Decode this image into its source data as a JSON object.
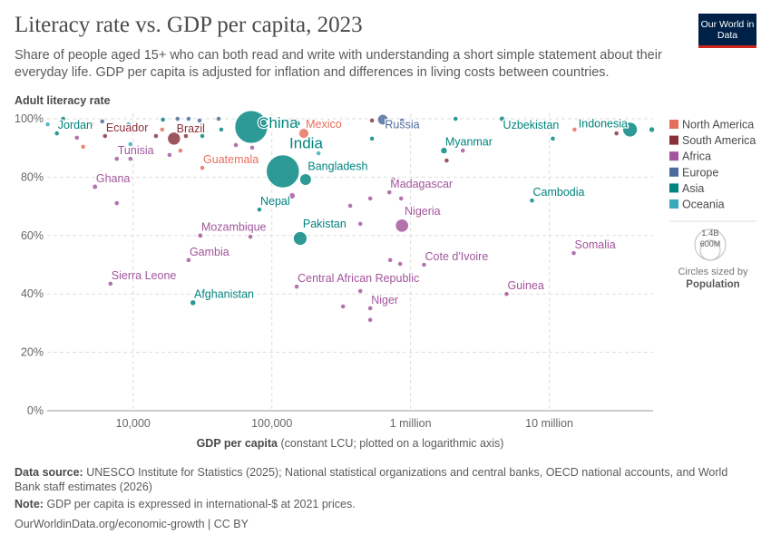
{
  "header": {
    "title": "Literacy rate vs. GDP per capita, 2023",
    "subtitle": "Share of people aged 15+ who can both read and write with understanding a short simple statement about their everyday life. GDP per capita is adjusted for inflation and differences in living costs between countries.",
    "logo": "Our World in Data"
  },
  "footer": {
    "source_label": "Data source:",
    "source": "UNESCO Institute for Statistics (2025); National statistical organizations and central banks, OECD national accounts, and World Bank staff estimates (2026)",
    "note_label": "Note:",
    "note": "GDP per capita is expressed in international-$ at 2021 prices.",
    "url": "OurWorldinData.org/economic-growth | CC BY"
  },
  "chart_data": {
    "type": "scatter",
    "title": "Literacy rate vs. GDP per capita, 2023",
    "ylabel": "Adult literacy rate",
    "xlabel_bold": "GDP per capita",
    "xlabel_rest": "(constant LCU; plotted on a logarithmic axis)",
    "x_scale": "log",
    "xlim": [
      2400,
      56000000
    ],
    "ylim": [
      0,
      100
    ],
    "x_ticks": [
      {
        "value": 10000,
        "label": "10,000"
      },
      {
        "value": 100000,
        "label": "100,000"
      },
      {
        "value": 1000000,
        "label": "1 million"
      },
      {
        "value": 10000000,
        "label": "10 million"
      }
    ],
    "y_ticks": [
      {
        "value": 0,
        "label": "0%"
      },
      {
        "value": 20,
        "label": "20%"
      },
      {
        "value": 40,
        "label": "40%"
      },
      {
        "value": 60,
        "label": "60%"
      },
      {
        "value": 80,
        "label": "80%"
      },
      {
        "value": 100,
        "label": "100%"
      }
    ],
    "grid": true,
    "legend_position": "right",
    "legend": [
      {
        "name": "North America",
        "color": "#E56E5A"
      },
      {
        "name": "South America",
        "color": "#883039"
      },
      {
        "name": "Africa",
        "color": "#A2559C"
      },
      {
        "name": "Europe",
        "color": "#4C6A9C"
      },
      {
        "name": "Asia",
        "color": "#00847E"
      },
      {
        "name": "Oceania",
        "color": "#38AABA"
      }
    ],
    "size_legend": {
      "large": "1.4B",
      "small": "600M",
      "caption": "Circles sized by",
      "variable": "Population"
    },
    "points": [
      {
        "label": "Jordan",
        "x": 2820,
        "y": 95.0,
        "region": "Asia",
        "pop": 11
      },
      {
        "label": "Ecuador",
        "x": 6270,
        "y": 94.1,
        "region": "South America",
        "pop": 18
      },
      {
        "label": "Brazil",
        "x": 19700,
        "y": 93.2,
        "region": "South America",
        "pop": 216
      },
      {
        "label": "China",
        "x": 71000,
        "y": 97.2,
        "region": "Asia",
        "pop": 1410
      },
      {
        "label": "Mexico",
        "x": 170000,
        "y": 95.0,
        "region": "North America",
        "pop": 128
      },
      {
        "label": "India",
        "x": 120000,
        "y": 82.0,
        "region": "Asia",
        "pop": 1430
      },
      {
        "label": "Bangladesh",
        "x": 175000,
        "y": 79.2,
        "region": "Asia",
        "pop": 173
      },
      {
        "label": "Tunisia",
        "x": 7620,
        "y": 86.3,
        "region": "Africa",
        "pop": 12
      },
      {
        "label": "Guatemala",
        "x": 31500,
        "y": 83.2,
        "region": "North America",
        "pop": 18
      },
      {
        "label": "Ghana",
        "x": 5310,
        "y": 76.7,
        "region": "Africa",
        "pop": 34
      },
      {
        "label": "Nepal",
        "x": 81300,
        "y": 68.9,
        "region": "Asia",
        "pop": 30
      },
      {
        "label": "Mozambique",
        "x": 30500,
        "y": 60.0,
        "region": "Africa",
        "pop": 33
      },
      {
        "label": "Pakistan",
        "x": 160000,
        "y": 59.0,
        "region": "Asia",
        "pop": 240
      },
      {
        "label": "Gambia",
        "x": 25100,
        "y": 51.6,
        "region": "Africa",
        "pop": 3
      },
      {
        "label": "Sierra Leone",
        "x": 6860,
        "y": 43.5,
        "region": "Africa",
        "pop": 9
      },
      {
        "label": "Afghanistan",
        "x": 27000,
        "y": 37.0,
        "region": "Asia",
        "pop": 42
      },
      {
        "label": "Central African Republic",
        "x": 151000,
        "y": 42.5,
        "region": "Africa",
        "pop": 5
      },
      {
        "label": "Niger",
        "x": 512000,
        "y": 35.1,
        "region": "Africa",
        "pop": 27
      },
      {
        "label": "Russia",
        "x": 631000,
        "y": 99.7,
        "region": "Europe",
        "pop": 144
      },
      {
        "label": "Madagascar",
        "x": 703000,
        "y": 74.8,
        "region": "Africa",
        "pop": 30
      },
      {
        "label": "Nigeria",
        "x": 867000,
        "y": 63.4,
        "region": "Africa",
        "pop": 224
      },
      {
        "label": "Myanmar",
        "x": 1740000,
        "y": 89.1,
        "region": "Asia",
        "pop": 54
      },
      {
        "label": "Uzbekistan",
        "x": 4560000,
        "y": 100,
        "region": "Asia",
        "pop": 35
      },
      {
        "label": "Indonesia",
        "x": 38200000,
        "y": 96.3,
        "region": "Asia",
        "pop": 278
      },
      {
        "label": "Cambodia",
        "x": 7500000,
        "y": 72.0,
        "region": "Asia",
        "pop": 17
      },
      {
        "label": "Somalia",
        "x": 15000000,
        "y": 54.0,
        "region": "Africa",
        "pop": 18
      },
      {
        "label": "Cote d'Ivoire",
        "x": 1250000,
        "y": 50.0,
        "region": "Africa",
        "pop": 29
      },
      {
        "label": "Guinea",
        "x": 4920000,
        "y": 40.0,
        "region": "Africa",
        "pop": 14
      },
      {
        "x": 2420,
        "y": 98.1,
        "region": "Oceania",
        "pop": 1
      },
      {
        "x": 3130,
        "y": 100,
        "region": "Asia",
        "pop": 5
      },
      {
        "x": 3930,
        "y": 93.5,
        "region": "Africa",
        "pop": 5
      },
      {
        "x": 4360,
        "y": 90.4,
        "region": "North America",
        "pop": 3
      },
      {
        "x": 5000,
        "y": 98.1,
        "region": "North America",
        "pop": 3
      },
      {
        "x": 5990,
        "y": 99.1,
        "region": "Europe",
        "pop": 3
      },
      {
        "x": 9270,
        "y": 98.1,
        "region": "Oceania",
        "pop": 1
      },
      {
        "x": 9560,
        "y": 91.3,
        "region": "Oceania",
        "pop": 1
      },
      {
        "x": 9560,
        "y": 86.3,
        "region": "Africa",
        "pop": 5
      },
      {
        "x": 7620,
        "y": 71.1,
        "region": "Africa",
        "pop": 5
      },
      {
        "x": 14600,
        "y": 94.1,
        "region": "South America",
        "pop": 8
      },
      {
        "x": 16200,
        "y": 96.3,
        "region": "North America",
        "pop": 5
      },
      {
        "x": 16400,
        "y": 99.7,
        "region": "Asia",
        "pop": 4
      },
      {
        "x": 18300,
        "y": 87.6,
        "region": "Africa",
        "pop": 5
      },
      {
        "x": 20900,
        "y": 100,
        "region": "Europe",
        "pop": 4
      },
      {
        "x": 21900,
        "y": 89.1,
        "region": "North America",
        "pop": 5
      },
      {
        "x": 24000,
        "y": 94.1,
        "region": "South America",
        "pop": 4
      },
      {
        "x": 25100,
        "y": 100,
        "region": "Europe",
        "pop": 20
      },
      {
        "x": 30100,
        "y": 99.4,
        "region": "Europe",
        "pop": 10
      },
      {
        "x": 31500,
        "y": 94.1,
        "region": "Asia",
        "pop": 5
      },
      {
        "x": 41300,
        "y": 100,
        "region": "Europe",
        "pop": 4
      },
      {
        "x": 43200,
        "y": 96.3,
        "region": "Asia",
        "pop": 15
      },
      {
        "x": 55000,
        "y": 91.0,
        "region": "Africa",
        "pop": 5
      },
      {
        "x": 72100,
        "y": 90.1,
        "region": "Africa",
        "pop": 15
      },
      {
        "x": 70000,
        "y": 59.6,
        "region": "Africa",
        "pop": 4
      },
      {
        "x": 119000,
        "y": 98.1,
        "region": "Asia",
        "pop": 4
      },
      {
        "x": 153000,
        "y": 98.4,
        "region": "Asia",
        "pop": 40
      },
      {
        "x": 146000,
        "y": 91.6,
        "region": "Asia",
        "pop": 15
      },
      {
        "x": 217000,
        "y": 88.2,
        "region": "Oceania",
        "pop": 3
      },
      {
        "x": 140000,
        "y": 73.6,
        "region": "Africa",
        "pop": 50
      },
      {
        "x": 367000,
        "y": 70.2,
        "region": "Africa",
        "pop": 5
      },
      {
        "x": 512000,
        "y": 72.7,
        "region": "Africa",
        "pop": 5
      },
      {
        "x": 434000,
        "y": 64.0,
        "region": "Africa",
        "pop": 5
      },
      {
        "x": 527000,
        "y": 99.4,
        "region": "South America",
        "pop": 4
      },
      {
        "x": 527000,
        "y": 93.2,
        "region": "Asia",
        "pop": 5
      },
      {
        "x": 713000,
        "y": 51.6,
        "region": "Africa",
        "pop": 5
      },
      {
        "x": 434000,
        "y": 41.0,
        "region": "Africa",
        "pop": 5
      },
      {
        "x": 326000,
        "y": 35.7,
        "region": "Africa",
        "pop": 8
      },
      {
        "x": 512000,
        "y": 31.1,
        "region": "Africa",
        "pop": 5
      },
      {
        "x": 867000,
        "y": 99.4,
        "region": "Europe",
        "pop": 3
      },
      {
        "x": 2110000,
        "y": 100,
        "region": "Asia",
        "pop": 3
      },
      {
        "x": 2380000,
        "y": 89.1,
        "region": "Africa",
        "pop": 4
      },
      {
        "x": 1820000,
        "y": 85.7,
        "region": "South America",
        "pop": 4
      },
      {
        "x": 747000,
        "y": 79.2,
        "region": "Africa",
        "pop": 3
      },
      {
        "x": 855000,
        "y": 72.7,
        "region": "Africa",
        "pop": 5
      },
      {
        "x": 841000,
        "y": 50.3,
        "region": "Africa",
        "pop": 4
      },
      {
        "x": 10600000,
        "y": 93.2,
        "region": "Asia",
        "pop": 4
      },
      {
        "x": 15200000,
        "y": 96.3,
        "region": "North America",
        "pop": 3
      },
      {
        "x": 30500000,
        "y": 95.0,
        "region": "South America",
        "pop": 4
      },
      {
        "x": 54800000,
        "y": 96.3,
        "region": "Asia",
        "pop": 40
      }
    ]
  }
}
